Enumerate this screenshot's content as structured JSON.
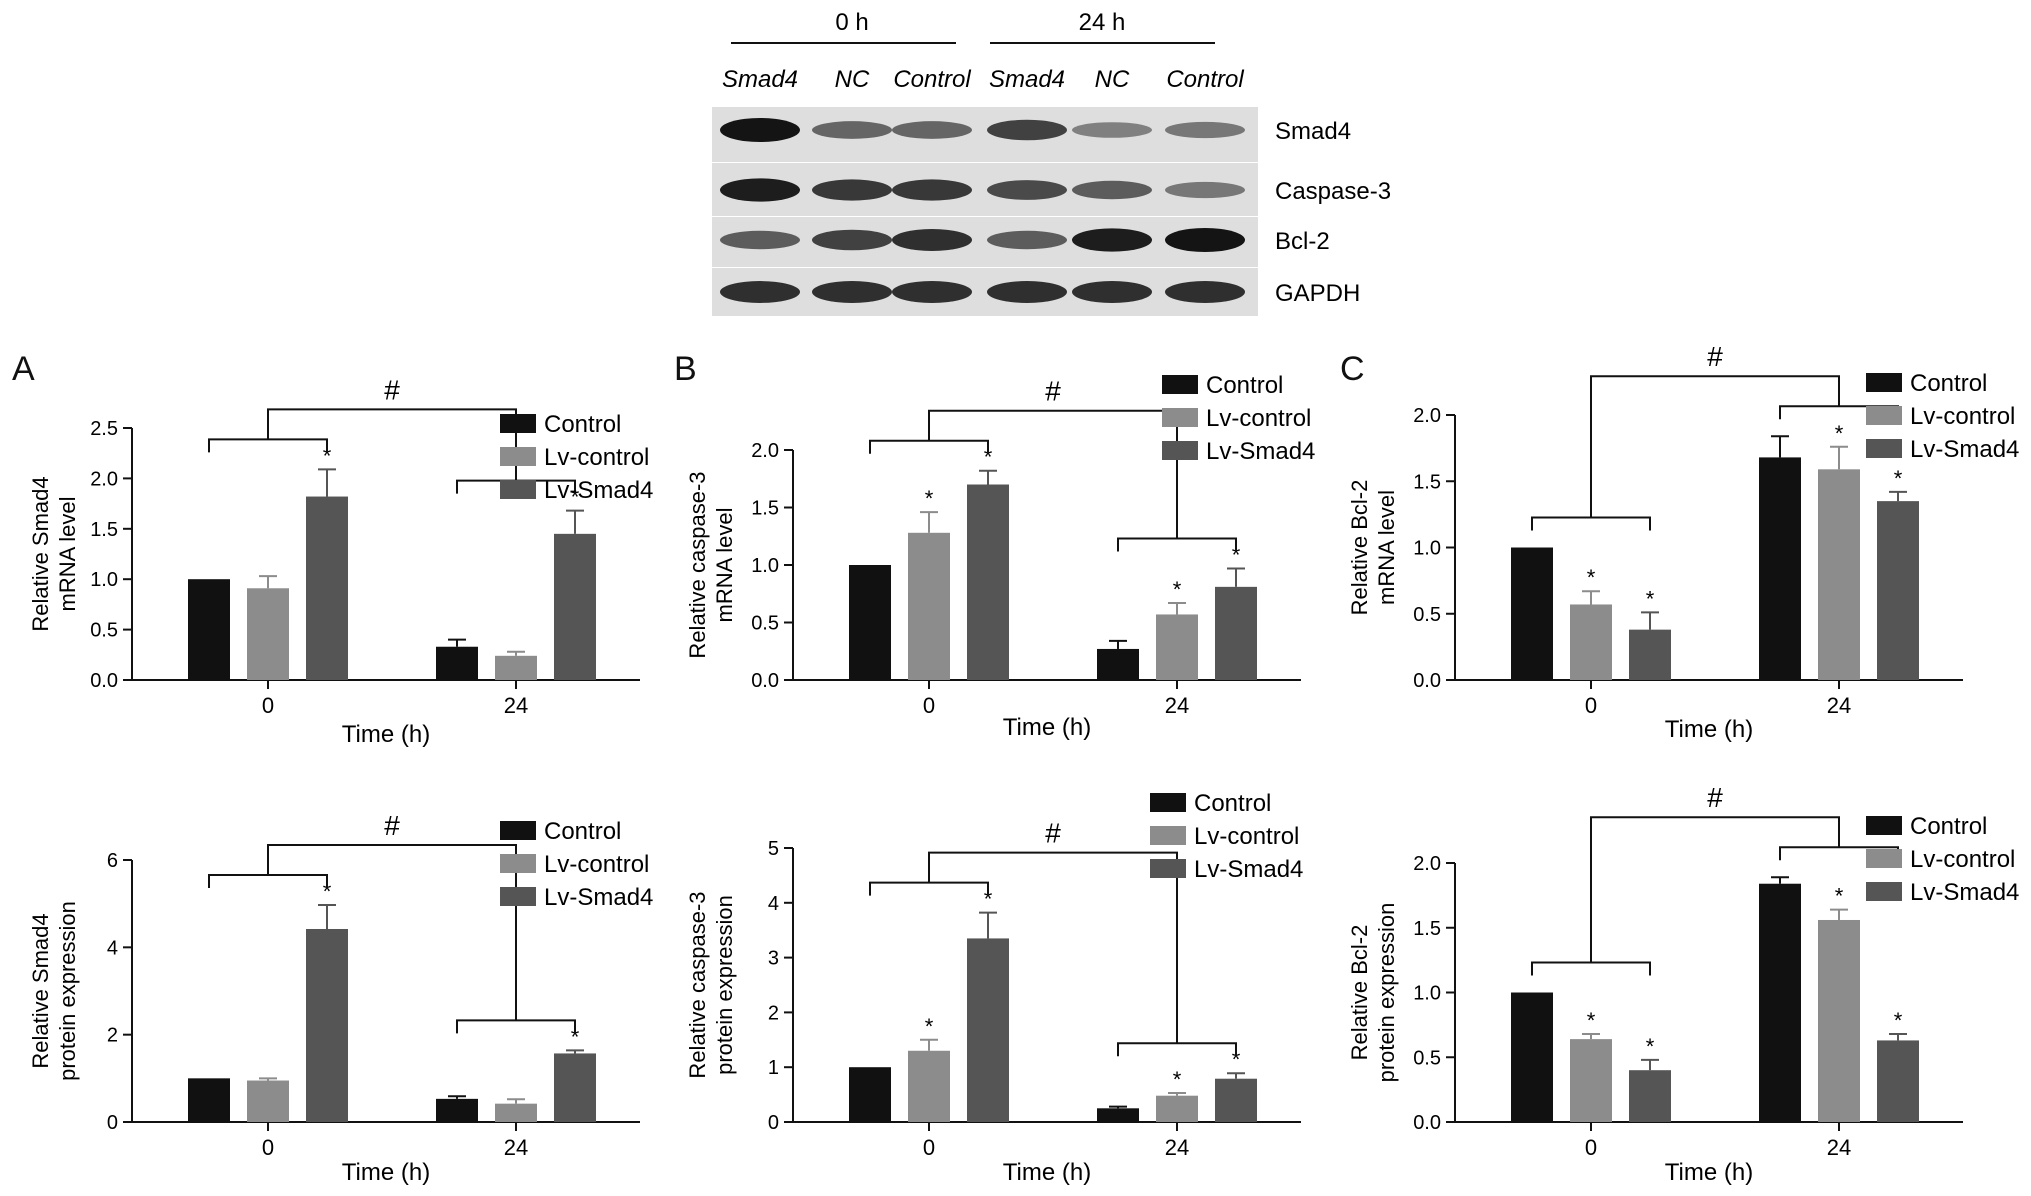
{
  "colors": {
    "control": "#111111",
    "lv_control": "#8c8c8c",
    "lv_smad4": "#555555",
    "axis": "#111111"
  },
  "blot": {
    "time_labels": [
      "0 h",
      "24 h"
    ],
    "lanes": [
      "Smad4",
      "NC",
      "Control",
      "Smad4",
      "NC",
      "Control"
    ],
    "proteins": [
      "Smad4",
      "Caspase-3",
      "Bcl-2",
      "GAPDH"
    ],
    "band_intensity": [
      [
        1.0,
        0.55,
        0.55,
        0.75,
        0.4,
        0.45
      ],
      [
        0.95,
        0.8,
        0.8,
        0.7,
        0.6,
        0.45
      ],
      [
        0.6,
        0.75,
        0.85,
        0.6,
        0.95,
        1.0
      ],
      [
        0.85,
        0.85,
        0.85,
        0.85,
        0.85,
        0.85
      ]
    ]
  },
  "panel_letters": [
    "A",
    "B",
    "C"
  ],
  "chart_data": [
    {
      "type": "bar",
      "panel": "A",
      "ylabel": [
        "Relative Smad4",
        "mRNA level"
      ],
      "xlabel": "Time (h)",
      "categories": [
        "0",
        "24"
      ],
      "ylim": [
        0,
        2.5
      ],
      "yticks": [
        "0.0",
        "0.5",
        "1.0",
        "1.5",
        "2.0",
        "2.5"
      ],
      "series": [
        {
          "name": "Control",
          "values": [
            1.0,
            0.33
          ],
          "errors": [
            0,
            0.07
          ]
        },
        {
          "name": "Lv-control",
          "values": [
            0.91,
            0.24
          ],
          "errors": [
            0.12,
            0.04
          ]
        },
        {
          "name": "Lv-Smad4",
          "values": [
            1.82,
            1.45
          ],
          "errors": [
            0.27,
            0.23
          ]
        }
      ],
      "stars": [
        [
          false,
          false,
          true
        ],
        [
          false,
          false,
          true
        ]
      ],
      "hash": "#",
      "star_symbol": "*",
      "legend": "right"
    },
    {
      "type": "bar",
      "panel": "B",
      "ylabel": [
        "Relative caspase-3",
        "mRNA level"
      ],
      "xlabel": "Time (h)",
      "categories": [
        "0",
        "24"
      ],
      "ylim": [
        0,
        2.0
      ],
      "yticks": [
        "0.0",
        "0.5",
        "1.0",
        "1.5",
        "2.0"
      ],
      "series": [
        {
          "name": "Control",
          "values": [
            1.0,
            0.27
          ],
          "errors": [
            0,
            0.07
          ]
        },
        {
          "name": "Lv-control",
          "values": [
            1.28,
            0.57
          ],
          "errors": [
            0.18,
            0.1
          ]
        },
        {
          "name": "Lv-Smad4",
          "values": [
            1.7,
            0.81
          ],
          "errors": [
            0.12,
            0.16
          ]
        }
      ],
      "stars": [
        [
          false,
          true,
          true
        ],
        [
          false,
          true,
          true
        ]
      ],
      "hash": "#",
      "star_symbol": "*",
      "legend": "right"
    },
    {
      "type": "bar",
      "panel": "C",
      "ylabel": [
        "Relative Bcl-2",
        "mRNA level"
      ],
      "xlabel": "Time (h)",
      "categories": [
        "0",
        "24"
      ],
      "ylim": [
        0,
        2.0
      ],
      "yticks": [
        "0.0",
        "0.5",
        "1.0",
        "1.5",
        "2.0"
      ],
      "series": [
        {
          "name": "Control",
          "values": [
            1.0,
            1.68
          ],
          "errors": [
            0,
            0.16
          ]
        },
        {
          "name": "Lv-control",
          "values": [
            0.57,
            1.59
          ],
          "errors": [
            0.1,
            0.17
          ]
        },
        {
          "name": "Lv-Smad4",
          "values": [
            0.38,
            1.35
          ],
          "errors": [
            0.13,
            0.07
          ]
        }
      ],
      "stars": [
        [
          false,
          true,
          true
        ],
        [
          false,
          true,
          true
        ]
      ],
      "hash": "#",
      "star_symbol": "*",
      "legend": "right"
    },
    {
      "type": "bar",
      "panel": "A",
      "ylabel": [
        "Relative Smad4",
        "protein expression"
      ],
      "xlabel": "Time (h)",
      "categories": [
        "0",
        "24"
      ],
      "ylim": [
        0,
        6
      ],
      "yticks": [
        "0",
        "2",
        "4",
        "6"
      ],
      "series": [
        {
          "name": "Control",
          "values": [
            1.0,
            0.53
          ],
          "errors": [
            0,
            0.06
          ]
        },
        {
          "name": "Lv-control",
          "values": [
            0.95,
            0.42
          ],
          "errors": [
            0.05,
            0.1
          ]
        },
        {
          "name": "Lv-Smad4",
          "values": [
            4.42,
            1.57
          ],
          "errors": [
            0.55,
            0.07
          ]
        }
      ],
      "stars": [
        [
          false,
          false,
          true
        ],
        [
          false,
          false,
          true
        ]
      ],
      "hash": "#",
      "star_symbol": "*",
      "legend": "right"
    },
    {
      "type": "bar",
      "panel": "B",
      "ylabel": [
        "Relative caspase-3",
        "protein expression"
      ],
      "xlabel": "Time (h)",
      "categories": [
        "0",
        "24"
      ],
      "ylim": [
        0,
        5
      ],
      "yticks": [
        "0",
        "1",
        "2",
        "3",
        "4",
        "5"
      ],
      "series": [
        {
          "name": "Control",
          "values": [
            1.0,
            0.25
          ],
          "errors": [
            0,
            0.03
          ]
        },
        {
          "name": "Lv-control",
          "values": [
            1.3,
            0.48
          ],
          "errors": [
            0.2,
            0.05
          ]
        },
        {
          "name": "Lv-Smad4",
          "values": [
            3.35,
            0.79
          ],
          "errors": [
            0.47,
            0.1
          ]
        }
      ],
      "stars": [
        [
          false,
          true,
          true
        ],
        [
          false,
          true,
          true
        ]
      ],
      "hash": "#",
      "star_symbol": "*",
      "legend": "right"
    },
    {
      "type": "bar",
      "panel": "C",
      "ylabel": [
        "Relative Bcl-2",
        "protein expression"
      ],
      "xlabel": "Time (h)",
      "categories": [
        "0",
        "24"
      ],
      "ylim": [
        0,
        2.0
      ],
      "yticks": [
        "0.0",
        "0.5",
        "1.0",
        "1.5",
        "2.0"
      ],
      "series": [
        {
          "name": "Control",
          "values": [
            1.0,
            1.84
          ],
          "errors": [
            0,
            0.05
          ]
        },
        {
          "name": "Lv-control",
          "values": [
            0.64,
            1.56
          ],
          "errors": [
            0.04,
            0.08
          ]
        },
        {
          "name": "Lv-Smad4",
          "values": [
            0.4,
            0.63
          ],
          "errors": [
            0.08,
            0.05
          ]
        }
      ],
      "stars": [
        [
          false,
          true,
          true
        ],
        [
          false,
          true,
          true
        ]
      ],
      "hash": "#",
      "star_symbol": "*",
      "legend": "right"
    }
  ]
}
